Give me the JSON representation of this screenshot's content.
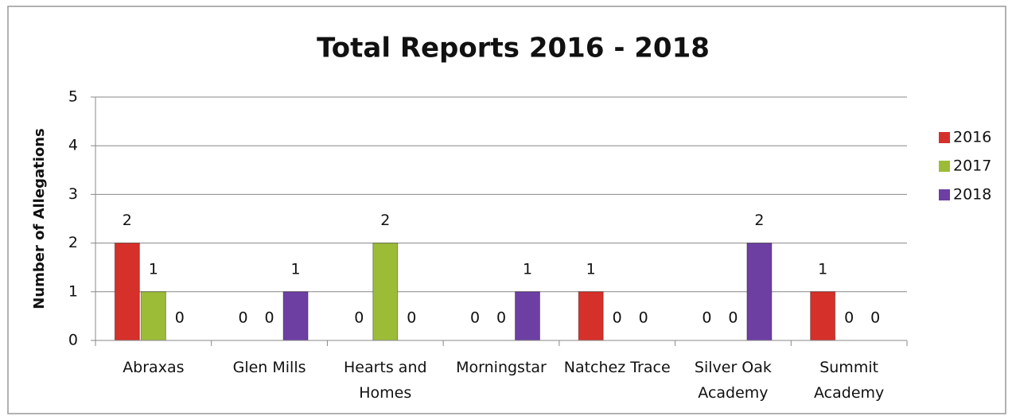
{
  "chart_data": {
    "type": "bar",
    "title": "Total Reports 2016 - 2018",
    "ylabel": "Number of Allegations",
    "categories": [
      "Abraxas",
      "Glen Mills",
      "Hearts and Homes",
      "Morningstar",
      "Natchez Trace",
      "Silver Oak Academy",
      "Summit Academy"
    ],
    "series": [
      {
        "name": "2016",
        "color": "#d6302b",
        "values": [
          2,
          0,
          0,
          0,
          1,
          0,
          1
        ]
      },
      {
        "name": "2017",
        "color": "#9cbc38",
        "values": [
          1,
          0,
          2,
          0,
          0,
          0,
          0
        ]
      },
      {
        "name": "2018",
        "color": "#6d3fa3",
        "values": [
          0,
          1,
          0,
          1,
          0,
          2,
          0
        ]
      }
    ],
    "ylim": [
      0,
      5
    ],
    "yticks": [
      0,
      1,
      2,
      3,
      4,
      5
    ],
    "grid": true,
    "legend": "right"
  }
}
